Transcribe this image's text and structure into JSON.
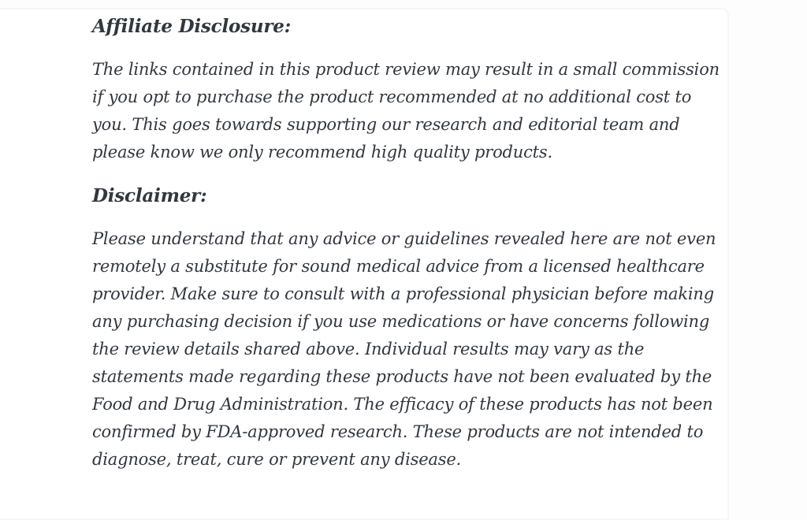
{
  "page": {
    "background_color": "#fdfdfd",
    "card_background_color": "#ffffff",
    "card_border_color": "#f6f6f6",
    "text_color": "#31373e"
  },
  "content": {
    "affiliate": {
      "heading": "Affiliate Disclosure:",
      "body": "The links contained in this product review may result in a small commission if you opt to purchase the product recommended at no additional cost to you. This goes towards supporting our research and editorial team and please know we only recommend high quality products."
    },
    "disclaimer": {
      "heading": "Disclaimer:",
      "body": "Please understand that any advice or guidelines revealed here are not even remotely a substitute for sound medical advice from a licensed healthcare provider. Make sure to consult with a professional physician before making any purchasing decision if you use medications or have concerns following the review details shared above. Individual results may vary as the statements made regarding these products have not been evaluated by the Food and Drug Administration. The efficacy of these products has not been confirmed by FDA-approved research. These products are not intended to diagnose, treat, cure or prevent any disease."
    }
  }
}
